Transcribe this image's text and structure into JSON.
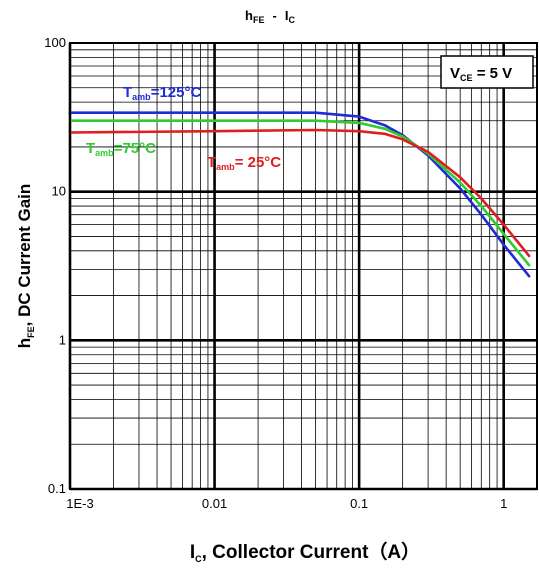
{
  "chart_data": {
    "type": "line",
    "title": {
      "main": "h",
      "main_sub": "FE",
      "sep": "-",
      "second": "I",
      "second_sub": "C"
    },
    "ylabel": {
      "main": "h",
      "sub": "FE",
      "rest": ", DC Current Gain"
    },
    "xlabel": {
      "main": "I",
      "sub": "C",
      "rest": ", Collector Current（A）"
    },
    "x_scale": "log",
    "y_scale": "log",
    "xlim": [
      0.001,
      1.7
    ],
    "ylim": [
      0.1,
      100
    ],
    "x_tick_labels": [
      "1E-3",
      "0.01",
      "0.1",
      "1"
    ],
    "y_tick_labels": [
      "0.1",
      "1",
      "10",
      "100"
    ],
    "grid": true,
    "condition": {
      "main": "V",
      "sub": "CE",
      "rest": " = 5 V"
    },
    "series": [
      {
        "name": {
          "main": "T",
          "sub": "amb",
          "rest": "=125°C"
        },
        "color": "#1f2bd6",
        "points": [
          [
            0.001,
            34
          ],
          [
            0.01,
            34
          ],
          [
            0.05,
            34
          ],
          [
            0.1,
            32
          ],
          [
            0.15,
            28
          ],
          [
            0.2,
            24
          ],
          [
            0.3,
            17.5
          ],
          [
            0.5,
            10.5
          ],
          [
            0.7,
            7
          ],
          [
            1.0,
            4.4
          ],
          [
            1.5,
            2.7
          ]
        ]
      },
      {
        "name": {
          "main": "T",
          "sub": "amb",
          "rest": "=75°C"
        },
        "color": "#2ecc2e",
        "points": [
          [
            0.001,
            30
          ],
          [
            0.01,
            30
          ],
          [
            0.05,
            30
          ],
          [
            0.1,
            29
          ],
          [
            0.15,
            26.5
          ],
          [
            0.2,
            23.5
          ],
          [
            0.3,
            18
          ],
          [
            0.5,
            11.5
          ],
          [
            0.7,
            8
          ],
          [
            1.0,
            5.2
          ],
          [
            1.5,
            3.2
          ]
        ]
      },
      {
        "name": {
          "main": "T",
          "sub": "amb",
          "rest": "= 25°C"
        },
        "color": "#e01e1e",
        "points": [
          [
            0.001,
            25
          ],
          [
            0.01,
            25.5
          ],
          [
            0.05,
            26
          ],
          [
            0.1,
            25.5
          ],
          [
            0.15,
            24.5
          ],
          [
            0.2,
            22.5
          ],
          [
            0.3,
            18.5
          ],
          [
            0.5,
            12.5
          ],
          [
            0.7,
            9
          ],
          [
            1.0,
            6
          ],
          [
            1.5,
            3.7
          ]
        ]
      }
    ]
  }
}
